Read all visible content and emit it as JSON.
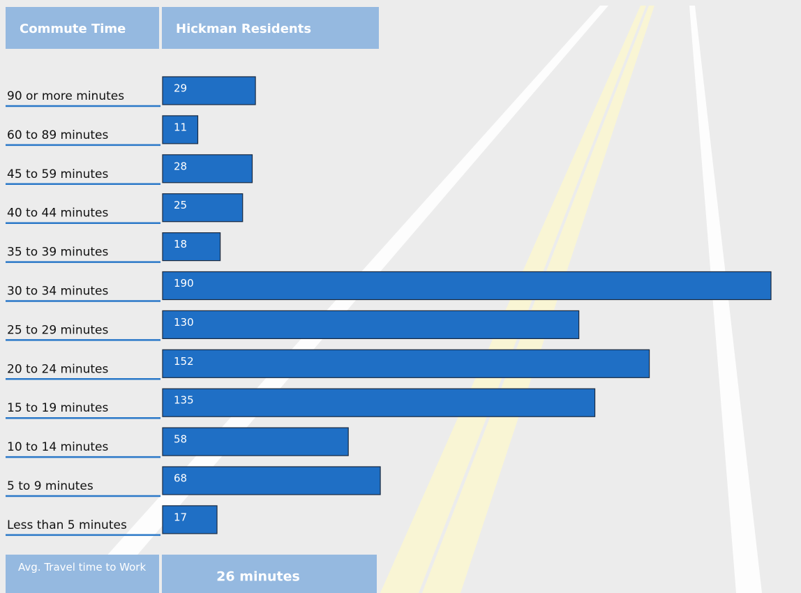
{
  "chart_data": {
    "type": "bar",
    "orientation": "horizontal",
    "header": {
      "category_title": "Commute Time",
      "value_title": "Hickman Residents"
    },
    "categories": [
      "90 or more minutes",
      "60 to 89 minutes",
      "45 to 59 minutes",
      "40 to 44 minutes",
      "35 to 39 minutes",
      "30 to 34 minutes",
      "25 to 29 minutes",
      "20 to 24 minutes",
      "15 to 19 minutes",
      "10 to 14 minutes",
      "5 to 9 minutes",
      "Less than 5 minutes"
    ],
    "values": [
      29,
      11,
      28,
      25,
      18,
      190,
      130,
      152,
      135,
      58,
      68,
      17
    ],
    "color": "#1f6fc5",
    "footer": {
      "label": "Avg. Travel time to Work",
      "value": "26 minutes"
    }
  }
}
